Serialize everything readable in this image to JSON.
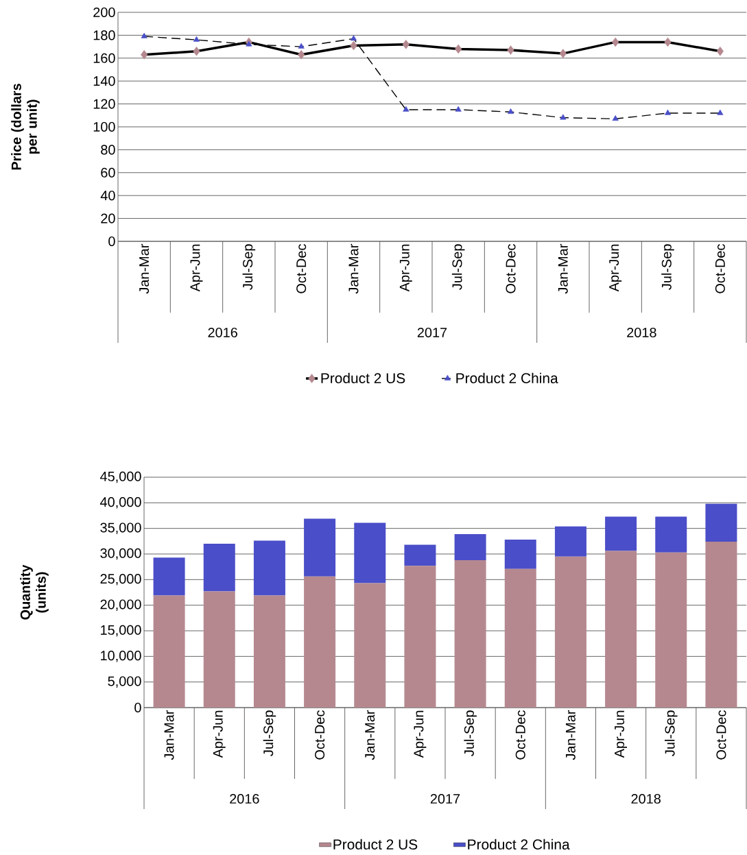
{
  "chart_data": [
    {
      "type": "line",
      "ylabel": "Price (dollars per unit)",
      "categories": [
        "Jan-Mar",
        "Apr-Jun",
        "Jul-Sep",
        "Oct-Dec",
        "Jan-Mar",
        "Apr-Jun",
        "Jul-Sep",
        "Oct-Dec",
        "Jan-Mar",
        "Apr-Jun",
        "Jul-Sep",
        "Oct-Dec"
      ],
      "annotations": [
        "2016",
        "2017",
        "2018"
      ],
      "series": [
        {
          "name": "Product 2 US",
          "color": "#b5888f",
          "marker": "diamond",
          "line_style": "solid",
          "values": [
            163,
            166,
            174,
            163,
            171,
            172,
            168,
            167,
            164,
            174,
            174,
            166
          ]
        },
        {
          "name": "Product 2 China",
          "color": "#4a4fc8",
          "marker": "triangle",
          "line_style": "dashed",
          "values": [
            179,
            176,
            172,
            170,
            177,
            115,
            115,
            113,
            108,
            107,
            112,
            112
          ]
        }
      ],
      "ylim": [
        0,
        200
      ],
      "yticks": [
        0,
        20,
        40,
        60,
        80,
        100,
        120,
        140,
        160,
        180,
        200
      ],
      "grid": "y",
      "legend": "bottom"
    },
    {
      "type": "bar",
      "stacked": true,
      "ylabel": "Quantity (units)",
      "categories": [
        "Jan-Mar",
        "Apr-Jun",
        "Jul-Sep",
        "Oct-Dec",
        "Jan-Mar",
        "Apr-Jun",
        "Jul-Sep",
        "Oct-Dec",
        "Jan-Mar",
        "Apr-Jun",
        "Jul-Sep",
        "Oct-Dec"
      ],
      "annotations": [
        "2016",
        "2017",
        "2018"
      ],
      "series": [
        {
          "name": "Product 2 US",
          "color": "#b5888f",
          "values": [
            21900,
            22700,
            21900,
            25600,
            24300,
            27700,
            28800,
            27100,
            29500,
            30600,
            30300,
            32400
          ]
        },
        {
          "name": "Product 2 China",
          "color": "#4a4ec8",
          "values": [
            7400,
            9300,
            10700,
            11300,
            11800,
            4100,
            5100,
            5700,
            5900,
            6700,
            7000,
            7400
          ]
        }
      ],
      "ylim": [
        0,
        45000
      ],
      "yticks": [
        {
          "value": 0,
          "label": "0"
        },
        {
          "value": 5000,
          "label": "5,000"
        },
        {
          "value": 10000,
          "label": "10,000"
        },
        {
          "value": 15000,
          "label": "15,000"
        },
        {
          "value": 20000,
          "label": "20,000"
        },
        {
          "value": 25000,
          "label": "25,000"
        },
        {
          "value": 30000,
          "label": "30,000"
        },
        {
          "value": 35000,
          "label": "35,000"
        },
        {
          "value": 40000,
          "label": "40,000"
        },
        {
          "value": 45000,
          "label": "45,000"
        }
      ],
      "grid": "y",
      "legend": "bottom"
    }
  ]
}
